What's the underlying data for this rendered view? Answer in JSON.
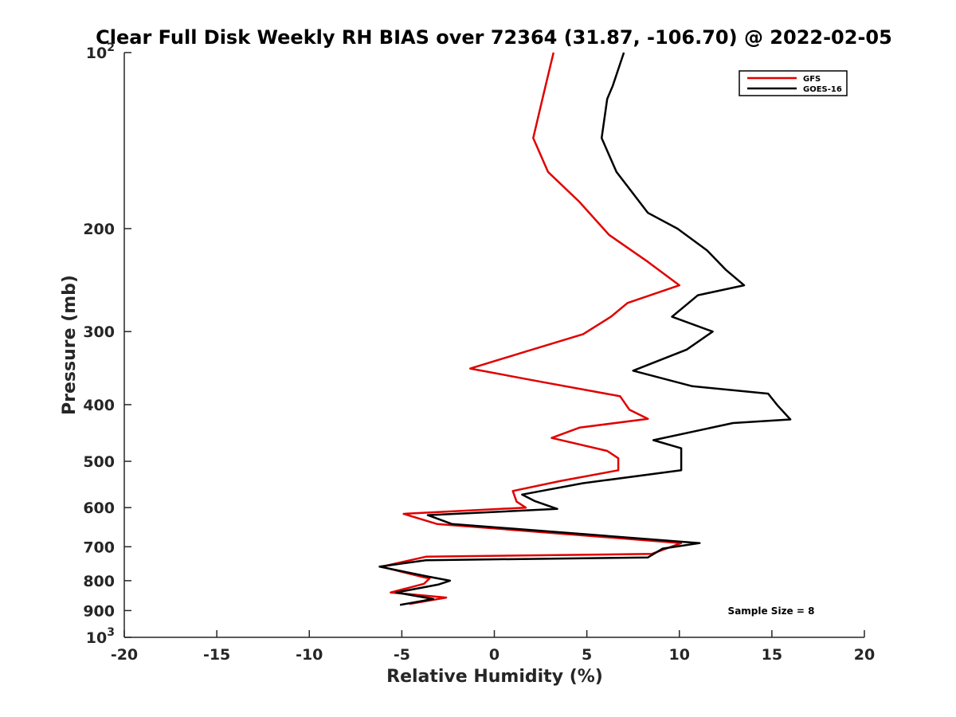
{
  "chart_data": {
    "type": "line",
    "title": "Clear Full Disk Weekly RH BIAS over 72364 (31.87, -106.70) @ 2022-02-05",
    "xlabel": "Relative Humidity (%)",
    "ylabel": "Pressure (mb)",
    "xlim": [
      -20,
      20
    ],
    "ylim": [
      100,
      1000
    ],
    "y_scale": "log",
    "y_reversed": true,
    "grid": false,
    "legend_position": "top-right",
    "x_ticks": [
      {
        "value": -20,
        "label": "-20"
      },
      {
        "value": -15,
        "label": "-15"
      },
      {
        "value": -10,
        "label": "-10"
      },
      {
        "value": -5,
        "label": "-5"
      },
      {
        "value": 0,
        "label": "0"
      },
      {
        "value": 5,
        "label": "5"
      },
      {
        "value": 10,
        "label": "10"
      },
      {
        "value": 15,
        "label": "15"
      },
      {
        "value": 20,
        "label": "20"
      }
    ],
    "y_ticks": [
      {
        "value": 100,
        "label": "10",
        "sup": "2"
      },
      {
        "value": 200,
        "label": "200"
      },
      {
        "value": 300,
        "label": "300"
      },
      {
        "value": 400,
        "label": "400"
      },
      {
        "value": 500,
        "label": "500"
      },
      {
        "value": 600,
        "label": "600"
      },
      {
        "value": 700,
        "label": "700"
      },
      {
        "value": 800,
        "label": "800"
      },
      {
        "value": 900,
        "label": "900"
      },
      {
        "value": 1000,
        "label": "10",
        "sup": "3"
      }
    ],
    "annotation": "Sample Size = 8",
    "series": [
      {
        "name": "GFS",
        "color": "#e00000",
        "points": [
          [
            3.2,
            100
          ],
          [
            2.6,
            120
          ],
          [
            2.1,
            140
          ],
          [
            2.9,
            160
          ],
          [
            4.6,
            180
          ],
          [
            6.2,
            205
          ],
          [
            8.3,
            228
          ],
          [
            10.0,
            250
          ],
          [
            7.2,
            268
          ],
          [
            6.3,
            283
          ],
          [
            4.8,
            303
          ],
          [
            1.5,
            326
          ],
          [
            -1.3,
            347
          ],
          [
            2.4,
            365
          ],
          [
            6.8,
            387
          ],
          [
            7.3,
            408
          ],
          [
            8.3,
            423
          ],
          [
            4.6,
            438
          ],
          [
            3.1,
            456
          ],
          [
            6.1,
            480
          ],
          [
            6.7,
            494
          ],
          [
            6.7,
            518
          ],
          [
            3.6,
            540
          ],
          [
            1.0,
            562
          ],
          [
            1.2,
            586
          ],
          [
            1.7,
            600
          ],
          [
            -4.9,
            615
          ],
          [
            -3.1,
            640
          ],
          [
            10.1,
            690
          ],
          [
            8.5,
            720
          ],
          [
            -3.7,
            728
          ],
          [
            -6.1,
            757
          ],
          [
            -4.0,
            787
          ],
          [
            -3.5,
            793
          ],
          [
            -3.8,
            810
          ],
          [
            -5.6,
            838
          ],
          [
            -2.6,
            855
          ],
          [
            -4.6,
            877
          ]
        ]
      },
      {
        "name": "GOES-16",
        "color": "#000000",
        "points": [
          [
            7.0,
            100
          ],
          [
            6.4,
            114
          ],
          [
            6.1,
            120
          ],
          [
            5.8,
            140
          ],
          [
            6.6,
            160
          ],
          [
            8.3,
            188
          ],
          [
            9.9,
            200
          ],
          [
            11.5,
            218
          ],
          [
            12.5,
            235
          ],
          [
            13.5,
            250
          ],
          [
            11.0,
            260
          ],
          [
            9.6,
            283
          ],
          [
            11.8,
            300
          ],
          [
            10.4,
            322
          ],
          [
            7.5,
            350
          ],
          [
            10.7,
            372
          ],
          [
            14.8,
            383
          ],
          [
            15.3,
            401
          ],
          [
            16.0,
            424
          ],
          [
            12.9,
            430
          ],
          [
            8.6,
            460
          ],
          [
            10.1,
            475
          ],
          [
            10.1,
            490
          ],
          [
            10.1,
            518
          ],
          [
            4.8,
            545
          ],
          [
            1.5,
            570
          ],
          [
            2.2,
            585
          ],
          [
            3.4,
            603
          ],
          [
            -3.6,
            618
          ],
          [
            -2.3,
            640
          ],
          [
            11.1,
            690
          ],
          [
            9.1,
            705
          ],
          [
            8.3,
            730
          ],
          [
            -3.7,
            738
          ],
          [
            -6.2,
            757
          ],
          [
            -3.6,
            787
          ],
          [
            -2.4,
            800
          ],
          [
            -3.0,
            812
          ],
          [
            -5.3,
            838
          ],
          [
            -3.3,
            860
          ],
          [
            -5.1,
            880
          ]
        ]
      }
    ]
  }
}
